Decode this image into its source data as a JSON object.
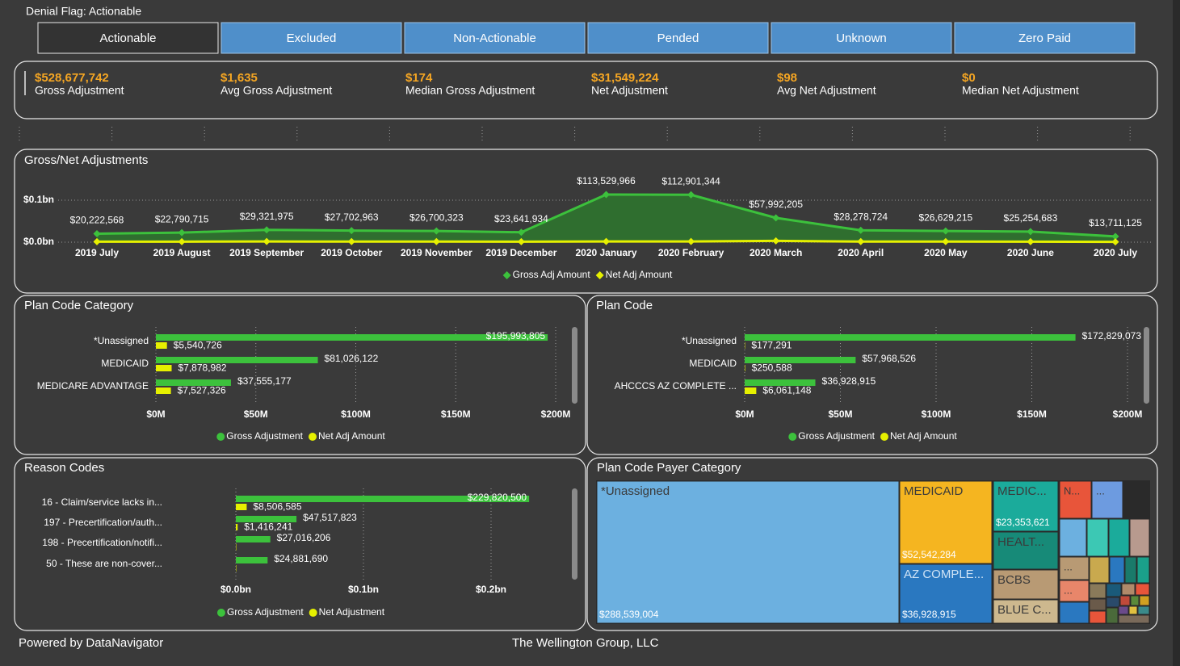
{
  "filter": "Denial Flag: Actionable",
  "tabs": [
    "Actionable",
    "Excluded",
    "Non-Actionable",
    "Pended",
    "Unknown",
    "Zero Paid"
  ],
  "active_tab": 0,
  "kpis": [
    {
      "value": "$528,677,742",
      "label": "Gross Adjustment"
    },
    {
      "value": "$1,635",
      "label": "Avg Gross Adjustment"
    },
    {
      "value": "$174",
      "label": "Median Gross Adjustment"
    },
    {
      "value": "$31,549,224",
      "label": "Net Adjustment"
    },
    {
      "value": "$98",
      "label": "Avg Net Adjustment"
    },
    {
      "value": "$0",
      "label": "Median Net Adjustment"
    }
  ],
  "chart_data": [
    {
      "type": "line",
      "title": "Gross/Net Adjustments",
      "categories": [
        "2019 July",
        "2019 August",
        "2019 September",
        "2019 October",
        "2019 November",
        "2019 December",
        "2020 January",
        "2020 February",
        "2020 March",
        "2020 April",
        "2020 May",
        "2020 June",
        "2020 July"
      ],
      "series": [
        {
          "name": "Gross Adj Amount",
          "color": "#3cc13c",
          "values": [
            0.020222568,
            0.022790715,
            0.029321975,
            0.027702963,
            0.026700323,
            0.023641934,
            0.113529966,
            0.112901344,
            0.057992205,
            0.028278724,
            0.026629215,
            0.025254683,
            0.013711125
          ],
          "value_labels": [
            "$20,222,568",
            "$22,790,715",
            "$29,321,975",
            "$27,702,963",
            "$26,700,323",
            "$23,641,934",
            "$113,529,966",
            "$112,901,344",
            "$57,992,205",
            "$28,278,724",
            "$26,629,215",
            "$25,254,683",
            "$13,711,125"
          ]
        },
        {
          "name": "Net Adj Amount",
          "color": "#e6f000",
          "values": [
            0.0012,
            0.0013,
            0.0016,
            0.0015,
            0.0014,
            0.0013,
            0.0018,
            0.0017,
            0.0031,
            0.0015,
            0.0014,
            0.0013,
            0.0008
          ]
        }
      ],
      "ylim": [
        0,
        0.12
      ],
      "yticks": [
        {
          "value": 0,
          "label": "$0.0bn"
        },
        {
          "value": 0.1,
          "label": "$0.1bn"
        }
      ],
      "grid": true
    },
    {
      "type": "hbar",
      "title": "Plan Code Category",
      "categories": [
        "*Unassigned",
        "MEDICAID",
        "MEDICARE ADVANTAGE"
      ],
      "series": [
        {
          "name": "Gross Adjustment",
          "color": "#3cc13c",
          "values": [
            195.993805,
            81.026122,
            37.555177
          ],
          "value_labels": [
            "$195,993,805",
            "$81,026,122",
            "$37,555,177"
          ]
        },
        {
          "name": "Net Adj Amount",
          "color": "#e6f000",
          "values": [
            5.540726,
            7.878982,
            7.527326
          ],
          "value_labels": [
            "$5,540,726",
            "$7,878,982",
            "$7,527,326"
          ]
        }
      ],
      "xlim": [
        0,
        200
      ],
      "xticks": [
        {
          "value": 0,
          "label": "$0M"
        },
        {
          "value": 50,
          "label": "$50M"
        },
        {
          "value": 100,
          "label": "$100M"
        },
        {
          "value": 150,
          "label": "$150M"
        },
        {
          "value": 200,
          "label": "$200M"
        }
      ],
      "grid": true
    },
    {
      "type": "hbar",
      "title": "Plan Code",
      "categories": [
        "*Unassigned",
        "MEDICAID",
        "AHCCCS AZ COMPLETE ..."
      ],
      "series": [
        {
          "name": "Gross Adjustment",
          "color": "#3cc13c",
          "values": [
            172.829073,
            57.968526,
            36.928915
          ],
          "value_labels": [
            "$172,829,073",
            "$57,968,526",
            "$36,928,915"
          ]
        },
        {
          "name": "Net Adj Amount",
          "color": "#e6f000",
          "values": [
            0.177291,
            0.250588,
            6.061148
          ],
          "value_labels": [
            "$177,291",
            "$250,588",
            "$6,061,148"
          ]
        }
      ],
      "xlim": [
        0,
        200
      ],
      "xticks": [
        {
          "value": 0,
          "label": "$0M"
        },
        {
          "value": 50,
          "label": "$50M"
        },
        {
          "value": 100,
          "label": "$100M"
        },
        {
          "value": 150,
          "label": "$150M"
        },
        {
          "value": 200,
          "label": "$200M"
        }
      ],
      "grid": true
    },
    {
      "type": "hbar",
      "title": "Reason Codes",
      "categories": [
        "16 - Claim/service lacks in...",
        "197 - Precertification/auth...",
        "198 - Precertification/notifi...",
        "50 - These are non-cover..."
      ],
      "series": [
        {
          "name": "Gross Adjustment",
          "color": "#3cc13c",
          "values": [
            0.2298205,
            0.047517823,
            0.027016206,
            0.02488169
          ],
          "value_labels": [
            "$229,820,500",
            "$47,517,823",
            "$27,016,206",
            "$24,881,690"
          ]
        },
        {
          "name": "Net Adjustment",
          "color": "#e6f000",
          "values": [
            0.008506585,
            0.001416241,
            0.0003,
            0.0003
          ],
          "value_labels": [
            "$8,506,585",
            "$1,416,241",
            null,
            null
          ]
        }
      ],
      "xlim": [
        0,
        0.25
      ],
      "xticks": [
        {
          "value": 0,
          "label": "$0.0bn"
        },
        {
          "value": 0.1,
          "label": "$0.1bn"
        },
        {
          "value": 0.2,
          "label": "$0.2bn"
        }
      ],
      "grid": true
    },
    {
      "type": "treemap",
      "title": "Plan Code Payer Category",
      "categories": [
        "*Unassigned",
        "MEDICAID",
        "AZ COMPLE...",
        "MEDIC...",
        "HEALT...",
        "BCBS",
        "BLUE C...",
        "N...",
        "...",
        "...",
        "..."
      ],
      "values": [
        288539004,
        52542284,
        36928915,
        23353621,
        20000000,
        15000000,
        12000000,
        9000000,
        9000000,
        7000000,
        6000000
      ],
      "value_labels": [
        "$288,539,004",
        "$52,542,284",
        "$36,928,915",
        "$23,353,621",
        null,
        null,
        null,
        null,
        null,
        null,
        null
      ],
      "colors": [
        "#6cb0e0",
        "#f5b520",
        "#2a78c0",
        "#1bab9b",
        "#178a78",
        "#b89a74",
        "#cdb88e",
        "#e8553a",
        "#6d9be0",
        "#b89a74",
        "#e8866a"
      ]
    }
  ],
  "footer": {
    "left": "Powered by DataNavigator",
    "center": "The Wellington Group, LLC"
  }
}
